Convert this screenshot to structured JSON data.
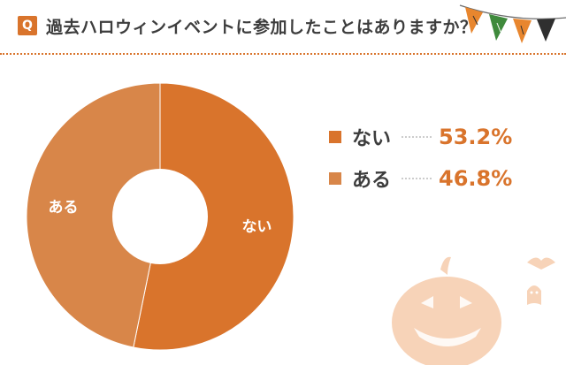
{
  "question": {
    "badge": "Q",
    "title": "過去ハロウィンイベントに参加したことはありますか？"
  },
  "colors": {
    "accent": "#d9742c",
    "slice_nai": "#d9742c",
    "slice_aru": "#d88649",
    "pumpkin": "#f7d3b8",
    "flag_orange": "#e8862e",
    "flag_green": "#3f8a3c",
    "flag_dark": "#2f2f2f"
  },
  "chart_data": {
    "type": "pie",
    "donut": true,
    "slices": [
      {
        "label": "ない",
        "value": 53.2,
        "display": "53.2%",
        "color": "#d9742c"
      },
      {
        "label": "ある",
        "value": 46.8,
        "display": "46.8%",
        "color": "#d88649"
      }
    ],
    "legend_position": "right"
  },
  "decorations": [
    "bunting-flags-icon",
    "pumpkin-icon",
    "bat-icon",
    "ghost-icon"
  ]
}
